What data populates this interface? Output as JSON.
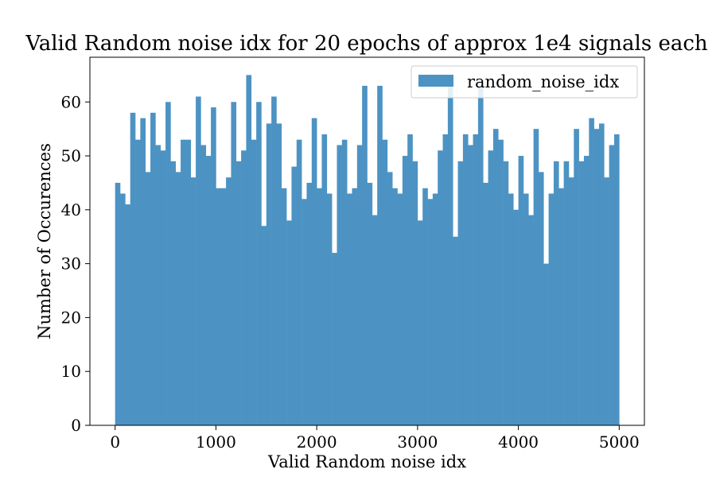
{
  "chart_data": {
    "type": "bar",
    "title": "Valid Random noise idx for 20 epochs of approx 1e4 signals each",
    "xlabel": "Valid Random noise idx",
    "ylabel": "Number of Occurences",
    "xlim": [
      -250,
      5250
    ],
    "ylim": [
      0,
      68.3
    ],
    "xticks": [
      0,
      1000,
      2000,
      3000,
      4000,
      5000
    ],
    "xtick_labels": [
      "0",
      "1000",
      "2000",
      "3000",
      "4000",
      "5000"
    ],
    "yticks": [
      0,
      10,
      20,
      30,
      40,
      50,
      60
    ],
    "ytick_labels": [
      "0",
      "10",
      "20",
      "30",
      "40",
      "50",
      "60"
    ],
    "bin_range": [
      0,
      5000
    ],
    "grid": false,
    "legend_position": "top-right",
    "series": [
      {
        "name": "random_noise_idx",
        "color": "#4c93c3",
        "values": [
          45,
          43,
          41,
          58,
          53,
          57,
          47,
          58,
          52,
          51,
          60,
          49,
          47,
          53,
          53,
          46,
          61,
          52,
          50,
          59,
          44,
          44,
          46,
          60,
          49,
          51,
          65,
          53,
          60,
          37,
          56,
          61,
          56,
          44,
          38,
          48,
          53,
          42,
          45,
          57,
          44,
          54,
          43,
          32,
          52,
          53,
          43,
          44,
          52,
          63,
          45,
          39,
          63,
          53,
          47,
          44,
          43,
          50,
          54,
          49,
          38,
          44,
          42,
          43,
          51,
          54,
          63,
          35,
          49,
          54,
          52,
          54,
          63,
          45,
          51,
          55,
          53,
          49,
          43,
          40,
          50,
          43,
          39,
          55,
          47,
          30,
          43,
          49,
          44,
          49,
          46,
          55,
          49,
          50,
          57,
          55,
          56,
          46,
          52,
          54
        ]
      }
    ]
  }
}
